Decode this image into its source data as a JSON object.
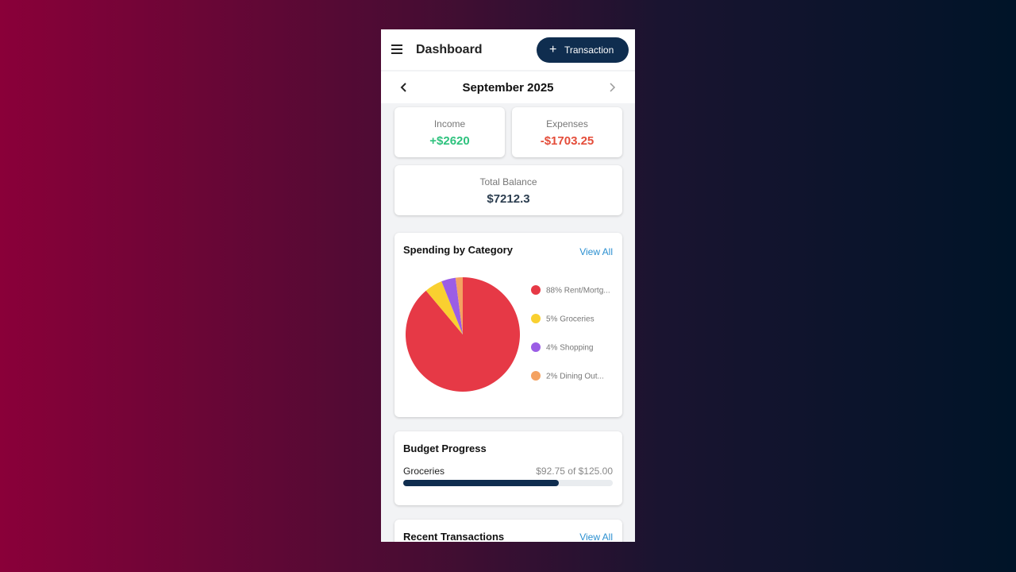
{
  "header": {
    "title": "Dashboard",
    "button": "Transaction"
  },
  "month": "September 2025",
  "summary": {
    "income_label": "Income",
    "income": "+$2620",
    "expenses_label": "Expenses",
    "expenses": "-$1703.25",
    "balance_label": "Total Balance",
    "balance": "$7212.3"
  },
  "spending": {
    "title": "Spending by Category",
    "view_all": "View All"
  },
  "chart_data": {
    "type": "pie",
    "categories": [
      "88% Rent/Mortg...",
      "5% Groceries",
      "4% Shopping",
      "2% Dining Out..."
    ],
    "values": [
      88,
      5,
      4,
      2
    ],
    "colors": [
      "#e63946",
      "#f9d030",
      "#9b5de5",
      "#f4a261"
    ]
  },
  "budget": {
    "title": "Budget Progress",
    "items": [
      {
        "name": "Groceries",
        "amount_label": "$92.75 of $125.00",
        "spent": 92.75,
        "limit": 125
      }
    ]
  },
  "recent": {
    "title": "Recent Transactions",
    "view_all": "View All"
  }
}
